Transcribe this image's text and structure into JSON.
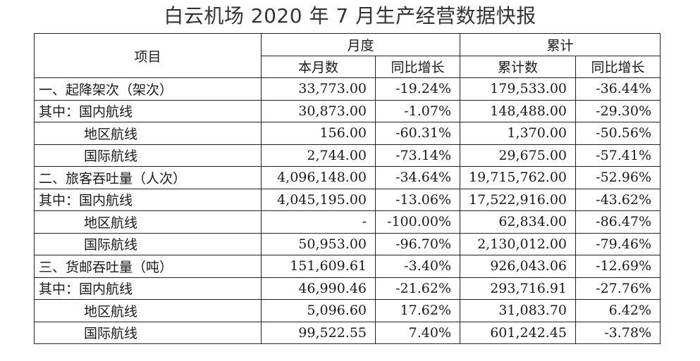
{
  "title": "白云机场 2020 年 7 月生产经营数据快报",
  "header": {
    "item": "项目",
    "month_group": "月度",
    "cumulative_group": "累计",
    "month_value": "本月数",
    "month_yoy": "同比增长",
    "cum_value": "累计数",
    "cum_yoy": "同比增长"
  },
  "rows": [
    {
      "label": "一、起降架次（架次）",
      "month": "33,773.00",
      "month_yoy": "-19.24%",
      "cum": "179,533.00",
      "cum_yoy": "-36.44%"
    },
    {
      "label": "其中：国内航线",
      "month": "30,873.00",
      "month_yoy": "-1.07%",
      "cum": "148,488.00",
      "cum_yoy": "-29.30%"
    },
    {
      "label": "地区航线",
      "month": "156.00",
      "month_yoy": "-60.31%",
      "cum": "1,370.00",
      "cum_yoy": "-50.56%"
    },
    {
      "label": "国际航线",
      "month": "2,744.00",
      "month_yoy": "-73.14%",
      "cum": "29,675.00",
      "cum_yoy": "-57.41%"
    },
    {
      "label": "二、旅客吞吐量（人次）",
      "month": "4,096,148.00",
      "month_yoy": "-34.64%",
      "cum": "19,715,762.00",
      "cum_yoy": "-52.96%"
    },
    {
      "label": "其中：国内航线",
      "month": "4,045,195.00",
      "month_yoy": "-13.06%",
      "cum": "17,522,916.00",
      "cum_yoy": "-43.62%"
    },
    {
      "label": "地区航线",
      "month": "-",
      "month_yoy": "-100.00%",
      "cum": "62,834.00",
      "cum_yoy": "-86.47%"
    },
    {
      "label": "国际航线",
      "month": "50,953.00",
      "month_yoy": "-96.70%",
      "cum": "2,130,012.00",
      "cum_yoy": "-79.46%"
    },
    {
      "label": "三、货邮吞吐量（吨）",
      "month": "151,609.61",
      "month_yoy": "-3.40%",
      "cum": "926,043.06",
      "cum_yoy": "-12.69%"
    },
    {
      "label": "其中：国内航线",
      "month": "46,990.46",
      "month_yoy": "-21.62%",
      "cum": "293,716.91",
      "cum_yoy": "-27.76%"
    },
    {
      "label": "地区航线",
      "month": "5,096.60",
      "month_yoy": "17.62%",
      "cum": "31,083.70",
      "cum_yoy": "6.42%"
    },
    {
      "label": "国际航线",
      "month": "99,522.55",
      "month_yoy": "7.40%",
      "cum": "601,242.45",
      "cum_yoy": "-3.78%"
    }
  ]
}
